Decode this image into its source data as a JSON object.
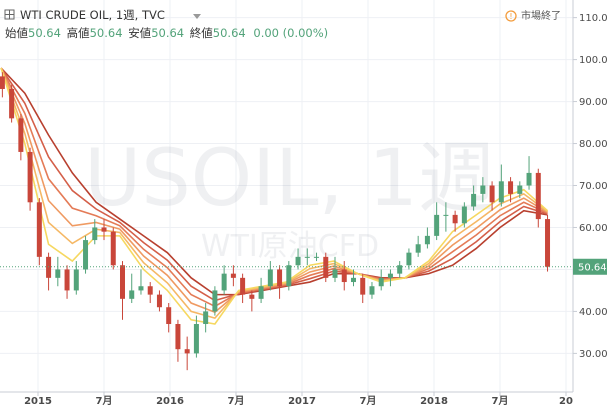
{
  "chart_data": {
    "type": "candlestick",
    "title": "WTI CRUDE OIL, 1週, TVC",
    "watermark": "USOIL, 1週",
    "watermark_sub": "WTI原油CFD",
    "x": [
      2014.73,
      2014.8,
      2014.87,
      2014.94,
      2015.01,
      2015.08,
      2015.15,
      2015.22,
      2015.29,
      2015.36,
      2015.43,
      2015.5,
      2015.57,
      2015.64,
      2015.71,
      2015.78,
      2015.85,
      2015.92,
      2015.99,
      2016.06,
      2016.13,
      2016.2,
      2016.27,
      2016.34,
      2016.41,
      2016.48,
      2016.55,
      2016.62,
      2016.69,
      2016.76,
      2016.83,
      2016.9,
      2016.97,
      2017.04,
      2017.11,
      2017.18,
      2017.25,
      2017.32,
      2017.39,
      2017.46,
      2017.53,
      2017.6,
      2017.67,
      2017.74,
      2017.81,
      2017.88,
      2017.95,
      2018.02,
      2018.09,
      2018.16,
      2018.23,
      2018.3,
      2018.37,
      2018.44,
      2018.51,
      2018.58,
      2018.65,
      2018.72,
      2018.79,
      2018.86
    ],
    "open": [
      96,
      93,
      86,
      78,
      66,
      53,
      48,
      50,
      45,
      50,
      57,
      60,
      59,
      51,
      43,
      45,
      46,
      44,
      41,
      37,
      31,
      30,
      37,
      40,
      45,
      49,
      48,
      44,
      43,
      46,
      50,
      46,
      51,
      53,
      53,
      53,
      48,
      50,
      47,
      48,
      44,
      46,
      48,
      49,
      51,
      54,
      56,
      58,
      63,
      63,
      61,
      65,
      68,
      70,
      66,
      71,
      68,
      70,
      73,
      62
    ],
    "high": [
      97,
      94,
      87,
      79,
      67,
      54,
      53,
      51,
      52,
      58,
      62,
      62,
      60,
      52,
      49,
      50,
      47,
      45,
      42,
      38,
      34,
      39,
      42,
      46,
      51,
      51,
      49,
      45,
      48,
      52,
      51,
      52,
      55,
      55,
      54,
      54,
      53,
      52,
      50,
      49,
      47,
      50,
      50,
      52,
      55,
      58,
      60,
      66,
      66,
      64,
      66,
      70,
      72,
      71,
      75,
      72,
      71,
      77,
      74,
      63
    ],
    "low": [
      91,
      85,
      76,
      64,
      51,
      45,
      46,
      43,
      44,
      49,
      56,
      57,
      50,
      38,
      42,
      44,
      42,
      40,
      35,
      28,
      26,
      29,
      35,
      39,
      44,
      46,
      42,
      40,
      42,
      45,
      43,
      45,
      50,
      51,
      52,
      47,
      47,
      45,
      46,
      42,
      43,
      45,
      46,
      48,
      50,
      53,
      55,
      57,
      59,
      59,
      60,
      64,
      66,
      64,
      65,
      66,
      67,
      69,
      60,
      49.5
    ],
    "close": [
      93,
      86,
      78,
      66,
      53,
      48,
      50,
      45,
      50,
      57,
      60,
      59,
      51,
      43,
      45,
      46,
      44,
      41,
      37,
      31,
      30,
      37,
      40,
      45,
      49,
      48,
      44,
      43,
      46,
      50,
      46,
      51,
      53,
      53,
      53,
      48,
      50,
      47,
      48,
      44,
      46,
      48,
      49,
      51,
      54,
      56,
      58,
      63,
      63,
      61,
      65,
      68,
      70,
      66,
      71,
      68,
      70,
      73,
      62,
      50.64
    ],
    "up_color": "#53a37a",
    "down_color": "#c9463a",
    "overlays": {
      "x": [
        2014.72,
        2014.9,
        2015.08,
        2015.26,
        2015.44,
        2015.62,
        2015.8,
        2015.98,
        2016.16,
        2016.34,
        2016.52,
        2016.7,
        2016.88,
        2017.06,
        2017.24,
        2017.42,
        2017.6,
        2017.78,
        2017.96,
        2018.14,
        2018.32,
        2018.5,
        2018.68,
        2018.86
      ],
      "series": [
        {
          "color": "#b8402f",
          "values": [
            98,
            92,
            82,
            73,
            66,
            62,
            58,
            54,
            48,
            44,
            44,
            45,
            46,
            47,
            49,
            49,
            48,
            48,
            49,
            51,
            55,
            60,
            64,
            63
          ]
        },
        {
          "color": "#d45f49",
          "values": [
            98,
            89.6,
            76.8,
            68.8,
            64.4,
            61.2,
            56.4,
            52.2,
            46,
            42.6,
            44.2,
            45.2,
            46.2,
            47.8,
            49.6,
            49,
            47.8,
            48,
            49.6,
            52.6,
            56.6,
            61.4,
            65,
            63.2
          ]
        },
        {
          "color": "#e47b57",
          "values": [
            98,
            87.2,
            71.6,
            64.6,
            62.8,
            60.4,
            54.8,
            50.4,
            44,
            41.2,
            44.4,
            45.4,
            46.4,
            48.6,
            50.2,
            49,
            47.6,
            48,
            50.2,
            54.2,
            58.2,
            62.8,
            66,
            63.4
          ]
        },
        {
          "color": "#ef9a62",
          "values": [
            98,
            84.8,
            66.4,
            60.4,
            61.2,
            59.6,
            53.2,
            48.6,
            42,
            39.8,
            44.6,
            45.6,
            46.6,
            49.4,
            50.8,
            49,
            47.4,
            48,
            50.8,
            55.8,
            59.8,
            64.2,
            67,
            63.6
          ]
        },
        {
          "color": "#f5b865",
          "values": [
            98,
            82.4,
            61.2,
            56.2,
            59.6,
            58.8,
            51.6,
            46.8,
            40,
            38.4,
            44.8,
            45.8,
            46.8,
            50.2,
            51.4,
            49,
            47.2,
            48,
            51.4,
            57.4,
            61.4,
            65.6,
            68,
            63.8
          ]
        },
        {
          "color": "#f6d860",
          "values": [
            98,
            80,
            56,
            52,
            58,
            58,
            50,
            45,
            38,
            37,
            45,
            46,
            47,
            51,
            52,
            49,
            47,
            48,
            52,
            59,
            63,
            67,
            69,
            64
          ]
        }
      ]
    },
    "xlim": [
      2014.712,
      2019.053
    ],
    "xticks": [
      2015,
      {
        "value": 2015.5,
        "label": "7月"
      },
      2016,
      {
        "value": 2016.5,
        "label": "7月"
      },
      2017,
      {
        "value": 2017.5,
        "label": "7月"
      },
      2018,
      {
        "value": 2018.5,
        "label": "7月"
      },
      {
        "value": 2019,
        "label": "20"
      }
    ],
    "ylim": [
      20.8,
      114.2
    ],
    "yticks": [
      {
        "value": 30,
        "label": "30.00"
      },
      {
        "value": 40,
        "label": "40.00"
      },
      {
        "value": 50,
        "label": "50.00"
      },
      {
        "value": 60,
        "label": "60.00"
      },
      {
        "value": 70,
        "label": "70.00"
      },
      {
        "value": 80,
        "label": "80.00"
      },
      {
        "value": 90,
        "label": "90.00"
      },
      {
        "value": 100,
        "label": "100.00"
      },
      {
        "value": 110,
        "label": "110.00"
      }
    ],
    "grid": true
  },
  "legend": {
    "items": [
      {
        "label": "始値",
        "value": "50.64"
      },
      {
        "label": "高値",
        "value": "50.64"
      },
      {
        "label": "安値",
        "value": "50.64"
      },
      {
        "label": "終値",
        "value": "50.64"
      }
    ],
    "change": "0.00 (0.00%)"
  },
  "status": "市場終了"
}
